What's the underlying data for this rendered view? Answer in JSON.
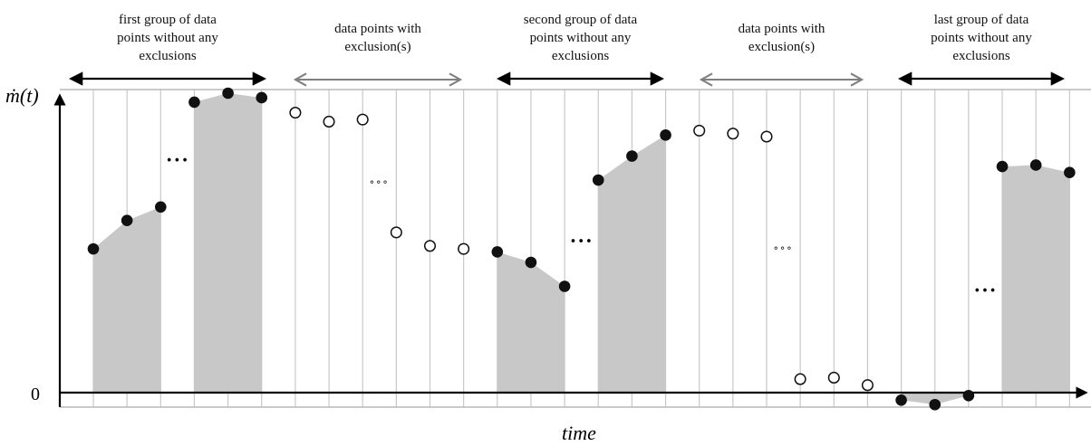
{
  "diagram": {
    "y_axis_label": "ṁ(t)",
    "x_axis_label": "time",
    "zero_label": "0",
    "colors": {
      "included_fill": "#c8c8c8",
      "included_point": "#111111",
      "excluded_point": "#ffffff",
      "included_arrow": "#000000",
      "excluded_arrow": "#808080",
      "gridline": "#c8c8c8"
    },
    "groups": [
      {
        "kind": "included",
        "label": [
          "first group of data",
          "points without any",
          "exclusions"
        ]
      },
      {
        "kind": "excluded",
        "label": [
          "data points with",
          "exclusion(s)"
        ]
      },
      {
        "kind": "included",
        "label": [
          "second group of data",
          "points without any",
          "exclusions"
        ]
      },
      {
        "kind": "excluded",
        "label": [
          "data points with",
          "exclusion(s)"
        ]
      },
      {
        "kind": "included",
        "label": [
          "last group of data",
          "points without any",
          "exclusions"
        ]
      }
    ],
    "ellipsis_glyph": "•••",
    "points": [
      {
        "v": 0.48,
        "kind": "included"
      },
      {
        "v": 0.575,
        "kind": "included"
      },
      {
        "v": 0.62,
        "kind": "included"
      },
      {
        "v": 0.97,
        "kind": "included"
      },
      {
        "v": 1.0,
        "kind": "included"
      },
      {
        "v": 0.985,
        "kind": "included"
      },
      {
        "v": 0.935,
        "kind": "excluded"
      },
      {
        "v": 0.905,
        "kind": "excluded"
      },
      {
        "v": 0.912,
        "kind": "excluded"
      },
      {
        "v": 0.535,
        "kind": "excluded"
      },
      {
        "v": 0.49,
        "kind": "excluded"
      },
      {
        "v": 0.48,
        "kind": "excluded"
      },
      {
        "v": 0.47,
        "kind": "included"
      },
      {
        "v": 0.435,
        "kind": "included"
      },
      {
        "v": 0.355,
        "kind": "included"
      },
      {
        "v": 0.71,
        "kind": "included"
      },
      {
        "v": 0.79,
        "kind": "included"
      },
      {
        "v": 0.86,
        "kind": "included"
      },
      {
        "v": 0.875,
        "kind": "excluded"
      },
      {
        "v": 0.865,
        "kind": "excluded"
      },
      {
        "v": 0.855,
        "kind": "excluded"
      },
      {
        "v": 0.045,
        "kind": "excluded"
      },
      {
        "v": 0.05,
        "kind": "excluded"
      },
      {
        "v": 0.025,
        "kind": "excluded"
      },
      {
        "v": -0.025,
        "kind": "included"
      },
      {
        "v": -0.04,
        "kind": "included"
      },
      {
        "v": -0.01,
        "kind": "included"
      },
      {
        "v": 0.755,
        "kind": "included"
      },
      {
        "v": 0.76,
        "kind": "included"
      },
      {
        "v": 0.735,
        "kind": "included"
      }
    ],
    "ellipses": [
      {
        "after_index": 2,
        "v": 0.775,
        "kind": "included"
      },
      {
        "after_index": 8,
        "v": 0.705,
        "kind": "excluded"
      },
      {
        "after_index": 14,
        "v": 0.505,
        "kind": "included"
      },
      {
        "after_index": 20,
        "v": 0.485,
        "kind": "excluded"
      },
      {
        "after_index": 26,
        "v": 0.34,
        "kind": "included"
      }
    ],
    "filled_runs": [
      [
        0,
        2
      ],
      [
        3,
        5
      ],
      [
        12,
        14
      ],
      [
        15,
        17
      ],
      [
        24,
        26
      ],
      [
        27,
        29
      ]
    ]
  }
}
